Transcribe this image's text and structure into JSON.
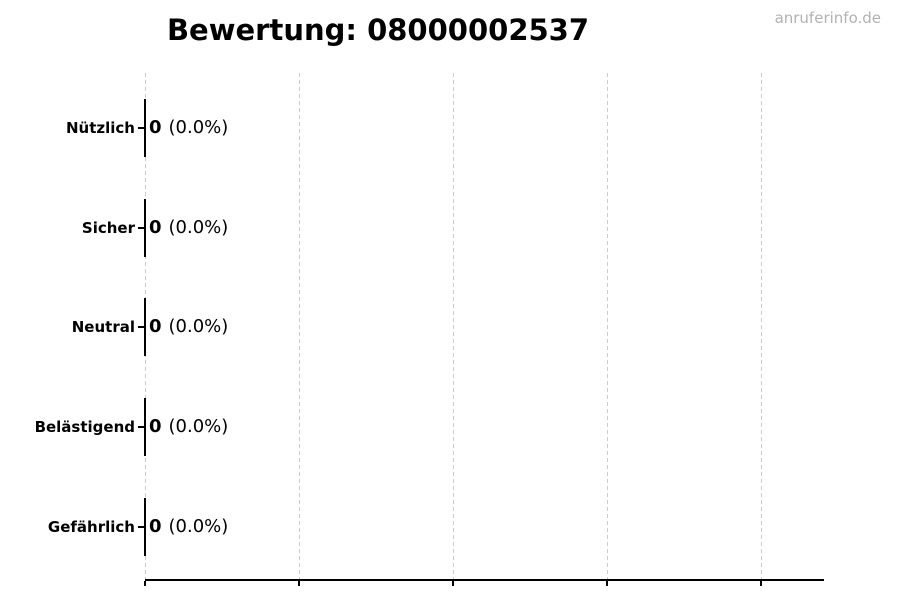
{
  "page": {
    "watermark": "anruferinfo.de"
  },
  "chart_data": {
    "type": "bar",
    "orientation": "horizontal",
    "title": "Bewertung: 08000002537",
    "categories": [
      "Nützlich",
      "Sicher",
      "Neutral",
      "Belästigend",
      "Gefährlich"
    ],
    "values": [
      0,
      0,
      0,
      0,
      0
    ],
    "percentages": [
      0.0,
      0.0,
      0.0,
      0.0,
      0.0
    ],
    "rows": [
      {
        "label": "Nützlich",
        "count": "0",
        "pct": "(0.0%)"
      },
      {
        "label": "Sicher",
        "count": "0",
        "pct": "(0.0%)"
      },
      {
        "label": "Neutral",
        "count": "0",
        "pct": "(0.0%)"
      },
      {
        "label": "Belästigend",
        "count": "0",
        "pct": "(0.0%)"
      },
      {
        "label": "Gefährlich",
        "count": "0",
        "pct": "(0.0%)"
      }
    ],
    "x_axis": {
      "tick_count": 5,
      "tick_labels_visible": false
    },
    "grid": {
      "vertical": true,
      "style": "dashed"
    },
    "legend": "none",
    "colors": {
      "text": "#000000",
      "axis": "#000000",
      "gridline": "#cccccc",
      "watermark": "#b2b2b2",
      "background": "#ffffff"
    }
  }
}
